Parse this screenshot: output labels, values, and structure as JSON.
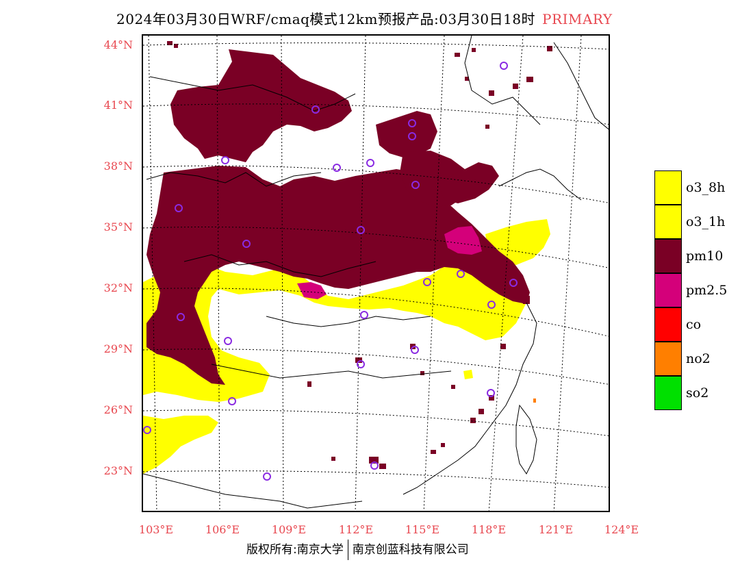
{
  "title": {
    "main": "2024年03月30日WRF/cmaq模式12km预报产品:03月30日18时",
    "tag": "PRIMARY"
  },
  "lat_labels": [
    "44°N",
    "41°N",
    "38°N",
    "35°N",
    "32°N",
    "29°N",
    "26°N",
    "23°N"
  ],
  "lon_labels": [
    "103°E",
    "106°E",
    "109°E",
    "112°E",
    "115°E",
    "118°E",
    "121°E",
    "124°E"
  ],
  "legend": [
    {
      "label": "o3_8h",
      "color": "#ffff00"
    },
    {
      "label": "o3_1h",
      "color": "#ffff00"
    },
    {
      "label": "pm10",
      "color": "#7a0025"
    },
    {
      "label": "pm2.5",
      "color": "#d4007a"
    },
    {
      "label": "co",
      "color": "#ff0000"
    },
    {
      "label": "no2",
      "color": "#ff7f00"
    },
    {
      "label": "so2",
      "color": "#00e000"
    }
  ],
  "copyright": {
    "left": "版权所有:南京大学",
    "right": "南京创蓝科技有限公司"
  },
  "colors": {
    "label_red": "#e8474f",
    "pm10": "#7a0025",
    "pm25": "#d4007a",
    "o3": "#ffff00",
    "station": "#8a2be2"
  }
}
